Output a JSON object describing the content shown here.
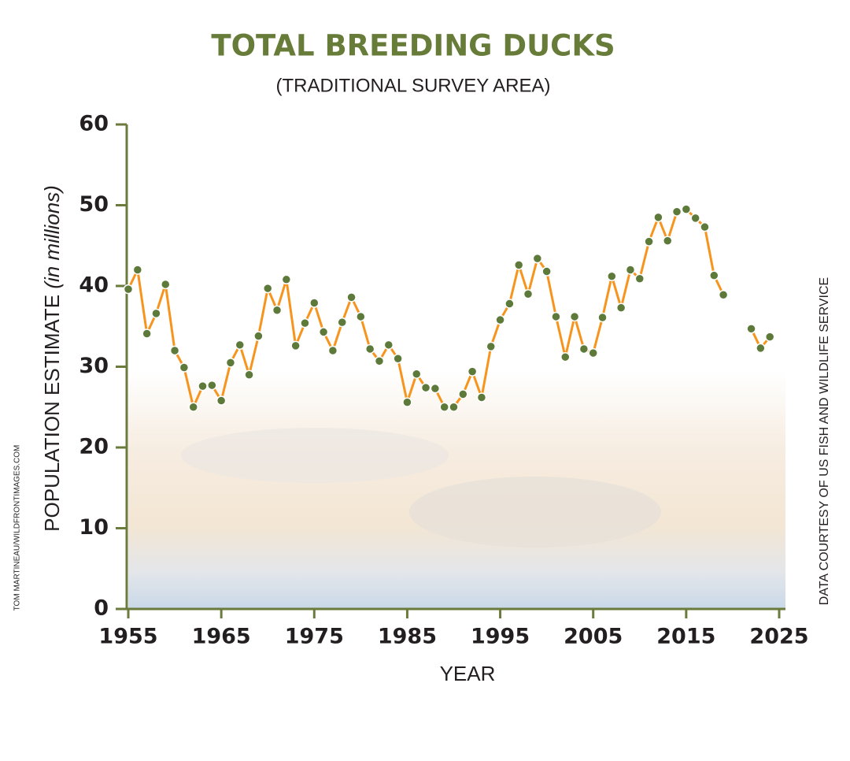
{
  "chart_data": {
    "type": "line",
    "title": "TOTAL BREEDING DUCKS",
    "subtitle": "(TRADITIONAL SURVEY AREA)",
    "y_label": "POPULATION ESTIMATE",
    "y_label_unit": "(in millions)",
    "x_label": "YEAR",
    "photo_credit": "TOM MARTINEAU/WILDFRONTIMAGES.COM",
    "source": "DATA COURTESY OF US FISH AND WILDLIFE SERVICE",
    "x": [
      1955,
      1956,
      1957,
      1958,
      1959,
      1960,
      1961,
      1962,
      1963,
      1964,
      1965,
      1966,
      1967,
      1968,
      1969,
      1970,
      1971,
      1972,
      1973,
      1974,
      1975,
      1976,
      1977,
      1978,
      1979,
      1980,
      1981,
      1982,
      1983,
      1984,
      1985,
      1986,
      1987,
      1988,
      1989,
      1990,
      1991,
      1992,
      1993,
      1994,
      1995,
      1996,
      1997,
      1998,
      1999,
      2000,
      2001,
      2002,
      2003,
      2004,
      2005,
      2006,
      2007,
      2008,
      2009,
      2010,
      2011,
      2012,
      2013,
      2014,
      2015,
      2016,
      2017,
      2018,
      2019,
      2020,
      2021,
      2022,
      2023,
      2024
    ],
    "series": [
      {
        "name": "Total breeding ducks",
        "color": "#f7941d",
        "marker_color": "#5e7a3a",
        "values": [
          39.6,
          42.0,
          34.1,
          36.6,
          40.2,
          32.0,
          29.9,
          25.0,
          27.6,
          27.7,
          25.8,
          30.5,
          32.7,
          29.0,
          33.8,
          39.7,
          37.0,
          40.8,
          32.6,
          35.4,
          37.9,
          34.3,
          32.0,
          35.5,
          38.6,
          36.2,
          32.2,
          30.7,
          32.7,
          31.0,
          25.6,
          29.1,
          27.4,
          27.3,
          25.0,
          25.0,
          26.6,
          29.4,
          26.2,
          32.5,
          35.8,
          37.8,
          42.6,
          39.0,
          43.4,
          41.8,
          36.2,
          31.2,
          36.2,
          32.2,
          31.7,
          36.1,
          41.2,
          37.3,
          42.0,
          40.9,
          45.5,
          48.5,
          45.6,
          49.2,
          49.5,
          48.4,
          47.3,
          41.3,
          38.9,
          null,
          null,
          34.7,
          32.3,
          33.7
        ]
      }
    ],
    "xlim": [
      1955,
      2025
    ],
    "xticks": [
      1955,
      1965,
      1975,
      1985,
      1995,
      2005,
      2015,
      2025
    ],
    "ylim": [
      0,
      60
    ],
    "yticks": [
      0,
      10,
      20,
      30,
      40,
      50,
      60
    ],
    "title_color": "#687c3a",
    "axis_color": "#6b7b3c"
  }
}
